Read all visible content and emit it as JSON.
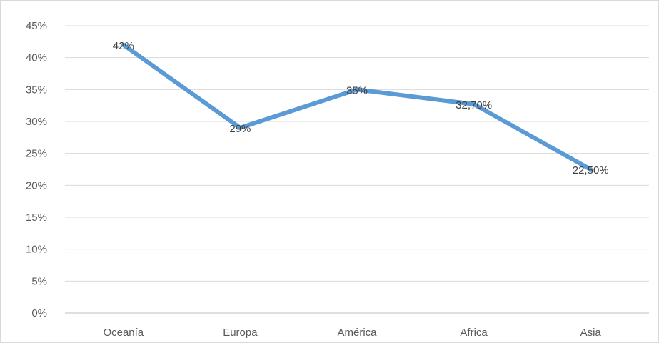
{
  "chart_data": {
    "type": "line",
    "title": "",
    "xlabel": "",
    "ylabel": "",
    "categories": [
      "Oceanía",
      "Europa",
      "América",
      "Africa",
      "Asia"
    ],
    "series": [
      {
        "values": [
          42,
          29,
          35,
          32.7,
          22.5
        ],
        "labels": [
          "42%",
          "29%",
          "35%",
          "32,70%",
          "22,50%"
        ],
        "color": "#5b9bd5"
      }
    ],
    "ylim": [
      0,
      45
    ],
    "yticks": [
      0,
      5,
      10,
      15,
      20,
      25,
      30,
      35,
      40,
      45
    ],
    "ytick_labels": [
      "0%",
      "5%",
      "10%",
      "15%",
      "20%",
      "25%",
      "30%",
      "35%",
      "40%",
      "45%"
    ],
    "grid": true,
    "legend": "none",
    "colors": {
      "gridline": "#d9d9d9",
      "axis_text": "#595959",
      "data_label_text": "#404040"
    }
  }
}
